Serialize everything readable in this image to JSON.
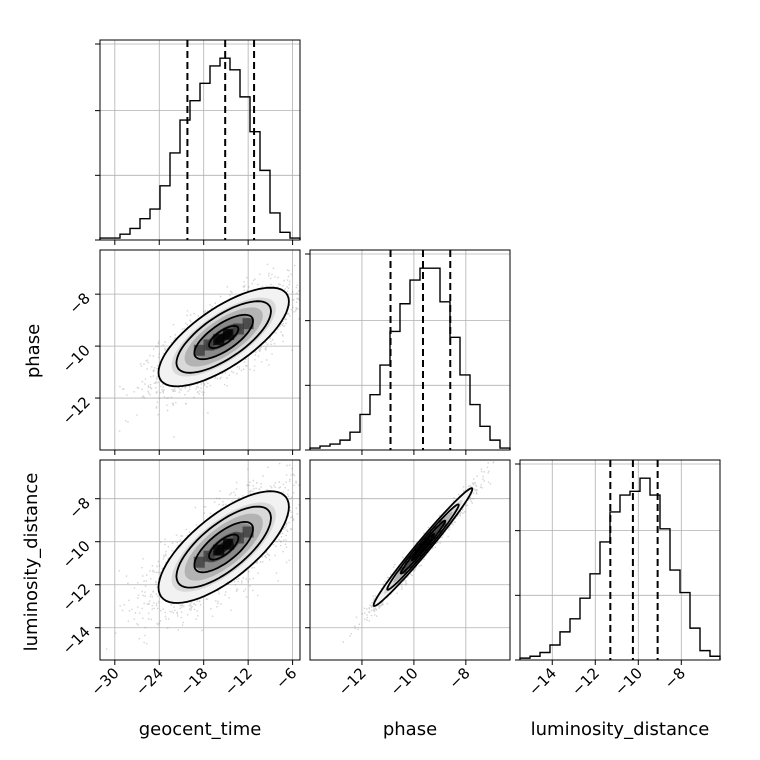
{
  "chart_data": {
    "type": "corner",
    "parameters": [
      "geocent_time",
      "phase",
      "luminosity_distance"
    ],
    "grid": true,
    "colors": {
      "line": "#000000",
      "grid": "#b0b0b0",
      "points": "#808080"
    },
    "ranges": {
      "geocent_time": [
        -32,
        -5
      ],
      "phase": [
        -14,
        -6.3
      ],
      "luminosity_distance": [
        -15.5,
        -6.2
      ]
    },
    "ticks": {
      "geocent_time": [
        -30,
        -24,
        -18,
        -12,
        -6
      ],
      "phase_x": [
        -12,
        -10,
        -8
      ],
      "phase_y": [
        -12,
        -10,
        -8
      ],
      "luminosity_distance_x": [
        -14,
        -12,
        -10,
        -8
      ],
      "luminosity_distance_y": [
        -14,
        -12,
        -10,
        -8
      ]
    },
    "tick_labels": {
      "geocent_time": [
        "−30",
        "−24",
        "−18",
        "−12",
        "−6"
      ],
      "phase": [
        "−12",
        "−10",
        "−8"
      ],
      "luminosity_distance": [
        "−14",
        "−12",
        "−10",
        "−8"
      ]
    },
    "axis_labels": {
      "row1_y": "phase",
      "row2_y": "luminosity_distance",
      "col0_x": "geocent_time",
      "col1_x": "phase",
      "col2_x": "luminosity_distance"
    },
    "histograms": [
      {
        "parameter": "geocent_time",
        "bin_edges": [
          -32,
          -30.65,
          -29.3,
          -27.95,
          -26.6,
          -25.25,
          -23.9,
          -22.55,
          -21.2,
          -19.85,
          -18.5,
          -17.15,
          -15.8,
          -14.45,
          -13.1,
          -11.75,
          -10.4,
          -9.05,
          -7.7,
          -6.35,
          -5
        ],
        "counts": [
          1,
          1,
          3,
          6,
          11,
          16,
          28,
          45,
          62,
          72,
          81,
          90,
          94,
          88,
          74,
          56,
          36,
          14,
          4,
          1
        ],
        "quantiles": [
          -20.2,
          -15.1,
          -11.2
        ]
      },
      {
        "parameter": "phase",
        "bin_edges": [
          -14,
          -13.615,
          -13.23,
          -12.845,
          -12.46,
          -12.075,
          -11.69,
          -11.305,
          -10.92,
          -10.535,
          -10.15,
          -9.765,
          -9.38,
          -8.995,
          -8.61,
          -8.225,
          -7.84,
          -7.455,
          -7.07,
          -6.685,
          -6.3
        ],
        "counts": [
          1,
          2,
          3,
          5,
          9,
          18,
          28,
          43,
          60,
          74,
          86,
          92,
          92,
          75,
          57,
          38,
          23,
          12,
          5,
          1
        ],
        "quantiles": [
          -10.9,
          -9.65,
          -8.6
        ]
      },
      {
        "parameter": "luminosity_distance",
        "bin_edges": [
          -15.5,
          -15.035,
          -14.57,
          -14.105,
          -13.64,
          -13.175,
          -12.71,
          -12.245,
          -11.78,
          -11.315,
          -10.85,
          -10.385,
          -9.92,
          -9.455,
          -8.99,
          -8.525,
          -8.06,
          -7.595,
          -7.13,
          -6.665,
          -6.2
        ],
        "counts": [
          1,
          2,
          4,
          8,
          15,
          22,
          33,
          46,
          63,
          79,
          88,
          90,
          97,
          88,
          70,
          48,
          36,
          17,
          5,
          2
        ],
        "quantiles": [
          -11.3,
          -10.25,
          -9.1
        ]
      }
    ],
    "joint": [
      {
        "x": "geocent_time",
        "y": "phase",
        "mean": [
          -15.3,
          -9.65
        ],
        "sd": [
          4.4,
          0.95
        ],
        "rho": 0.72,
        "points": 2600
      },
      {
        "x": "geocent_time",
        "y": "luminosity_distance",
        "mean": [
          -15.3,
          -10.25
        ],
        "sd": [
          4.4,
          1.3
        ],
        "rho": 0.72,
        "points": 2600
      },
      {
        "x": "phase",
        "y": "luminosity_distance",
        "mean": [
          -9.65,
          -10.25
        ],
        "sd": [
          0.95,
          1.37
        ],
        "rho": 0.985,
        "points": 1800
      }
    ]
  }
}
